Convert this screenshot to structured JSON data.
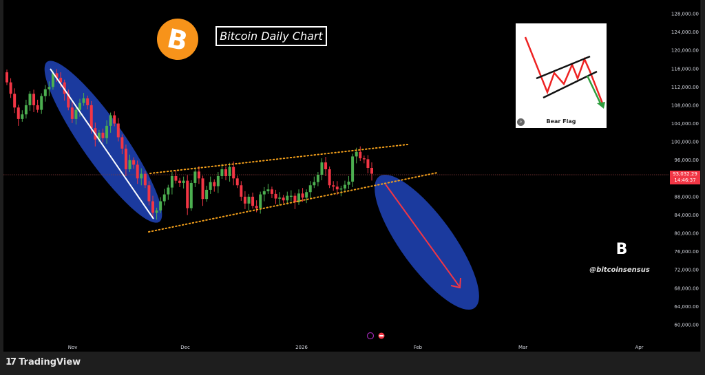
{
  "header": {
    "title": "Bitcoin Daily Chart",
    "logo": "bitcoin-logo"
  },
  "inset": {
    "label": "Bear Flag",
    "icon": "lens-icon"
  },
  "watermark": {
    "handle": "@bitcoinsensus",
    "logo_letter": "B"
  },
  "footer": {
    "brand": "TradingView",
    "brand_icon": "17"
  },
  "current_price": {
    "value": "93,032.29",
    "countdown": "14:46:37",
    "color": "#f23645"
  },
  "colors": {
    "up": "#26a69a",
    "up_fill": "#4caf50",
    "down": "#f23645",
    "channel": "#f7a21b",
    "highlight": "#1b3a9e",
    "background": "#000000"
  },
  "chart_data": {
    "type": "candlestick",
    "title": "Bitcoin Daily Chart",
    "y_ticks": [
      "128,000.00",
      "124,000.00",
      "120,000.00",
      "116,000.00",
      "112,000.00",
      "108,000.00",
      "104,000.00",
      "100,000.00",
      "96,000.00",
      "88,000.00",
      "84,000.00",
      "80,000.00",
      "76,000.00",
      "72,000.00",
      "68,000.00",
      "64,000.00",
      "60,000.00"
    ],
    "y_tick_values": [
      128000,
      124000,
      120000,
      116000,
      112000,
      108000,
      104000,
      100000,
      96000,
      88000,
      84000,
      80000,
      76000,
      72000,
      68000,
      64000,
      60000
    ],
    "ylim": [
      60000,
      128000
    ],
    "x_ticks": [
      {
        "label": "Nov",
        "date": "2025-11-01"
      },
      {
        "label": "Dec",
        "date": "2025-12-01"
      },
      {
        "label": "2026",
        "date": "2026-01-01"
      },
      {
        "label": "Feb",
        "date": "2026-02-01"
      },
      {
        "label": "Mar",
        "date": "2026-03-01"
      },
      {
        "label": "Apr",
        "date": "2026-04-01"
      }
    ],
    "first_open": 115200,
    "close": [
      113000,
      110500,
      107500,
      105000,
      106000,
      108000,
      110500,
      108000,
      107000,
      110000,
      111500,
      112000,
      115000,
      114000,
      113000,
      110500,
      107500,
      105000,
      107000,
      108500,
      109500,
      108000,
      103000,
      100500,
      102000,
      100800,
      103500,
      105800,
      104000,
      101000,
      98500,
      94000,
      96000,
      95000,
      92000,
      93000,
      90500,
      87000,
      84500,
      85000,
      87000,
      88500,
      90000,
      92500,
      91500,
      91000,
      91500,
      85500,
      91000,
      93500,
      92000,
      87500,
      89500,
      91200,
      90300,
      92500,
      94000,
      92500,
      94500,
      92000,
      90500,
      88000,
      86500,
      88000,
      86000,
      85500,
      88500,
      89200,
      89600,
      88600,
      87600,
      87800,
      87200,
      88200,
      88200,
      86800,
      88700,
      87800,
      89000,
      90500,
      91200,
      92800,
      95500,
      94000,
      90500,
      90200,
      89600,
      89800,
      90600,
      91300,
      96800,
      97800,
      96400,
      96200,
      94300,
      93032.29
    ],
    "annotations": [
      {
        "type": "trendline",
        "from": [
          "2025-10-28",
          115500
        ],
        "to": [
          "2025-11-24",
          83000
        ],
        "color": "#ffffff"
      },
      {
        "type": "channel-upper",
        "from": [
          "2025-11-24",
          93300
        ],
        "to": [
          "2026-01-27",
          99600
        ],
        "style": "dotted"
      },
      {
        "type": "channel-lower",
        "from": [
          "2025-11-24",
          80600
        ],
        "to": [
          "2026-02-04",
          93500
        ],
        "style": "dotted"
      },
      {
        "type": "projection-arrow",
        "from": [
          "2026-01-23",
          90000
        ],
        "to": [
          "2026-02-12",
          67500
        ],
        "color": "#f23645"
      }
    ]
  }
}
